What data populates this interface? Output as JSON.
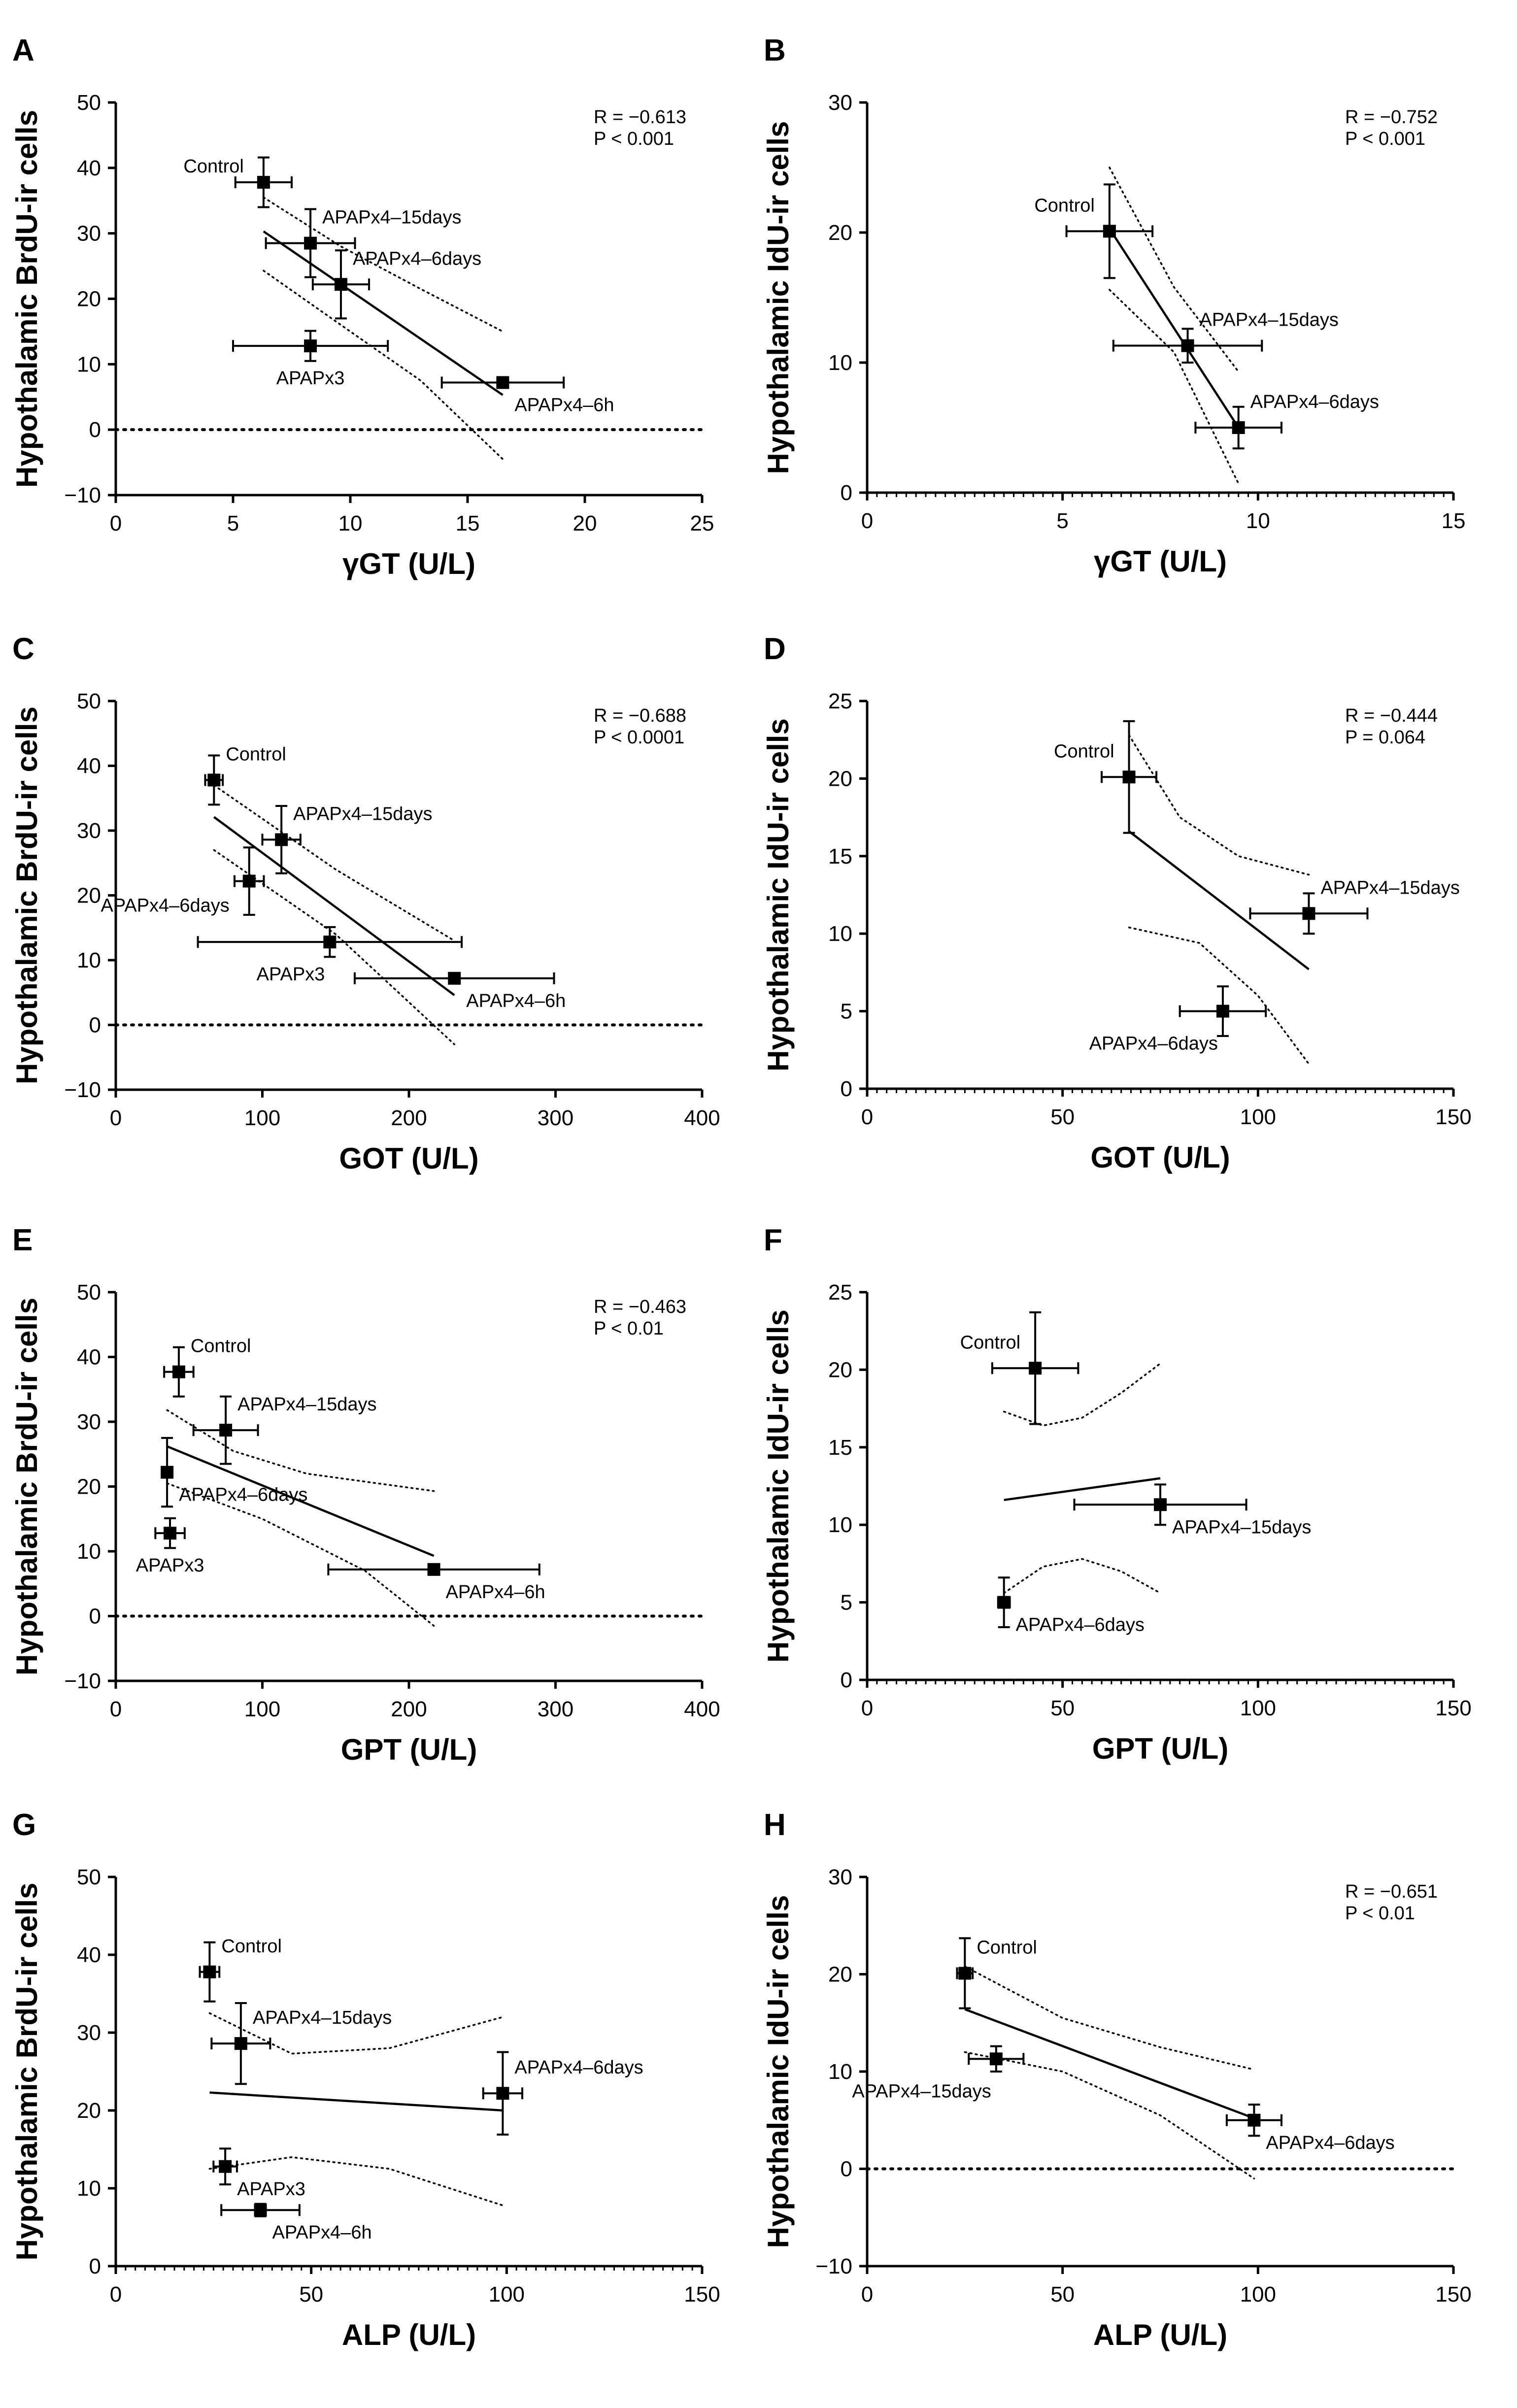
{
  "chart_data": [
    {
      "panel": "A",
      "type": "scatter",
      "xlabel": "γGT (U/L)",
      "ylabel": "Hypothalamic BrdU-ir cells",
      "xlim": [
        0,
        25
      ],
      "ylim": [
        -10,
        50
      ],
      "xticks": [
        "0",
        "5",
        "10",
        "15",
        "20",
        "25"
      ],
      "yticks": [
        "-10",
        "0",
        "10",
        "20",
        "30",
        "40",
        "50"
      ],
      "stats": [
        "R = −0.613",
        "P < 0.001"
      ],
      "stats_position": "top-right",
      "zero_line": true,
      "minor_xticks": false,
      "points": [
        {
          "label": "Control",
          "x": 6.3,
          "y": 37.8,
          "xerr": 1.2,
          "yerr": 3.8,
          "label_side": "left"
        },
        {
          "label": "APAPx4–15days",
          "x": 8.3,
          "y": 28.5,
          "xerr": 1.9,
          "yerr": 5.2,
          "label_side": "right-above"
        },
        {
          "label": "APAPx4–6days",
          "x": 9.6,
          "y": 22.2,
          "xerr": 1.2,
          "yerr": 5.2,
          "label_side": "right-above"
        },
        {
          "label": "APAPx3",
          "x": 8.3,
          "y": 12.8,
          "xerr": 3.3,
          "yerr": 2.3,
          "label_side": "below"
        },
        {
          "label": "APAPx4–6h",
          "x": 16.5,
          "y": 7.2,
          "xerr": 2.6,
          "yerr": 0.8,
          "label_side": "right-below"
        }
      ],
      "fit": {
        "x": [
          6.3,
          16.5
        ],
        "y": [
          30.3,
          5.3
        ]
      },
      "ci_upper": {
        "x": [
          6.3,
          9.6,
          13.0,
          16.5
        ],
        "y": [
          35.5,
          28.0,
          21.5,
          15.0
        ]
      },
      "ci_lower": {
        "x": [
          6.3,
          9.6,
          13.0,
          16.5
        ],
        "y": [
          24.3,
          16.0,
          7.5,
          -4.5
        ]
      }
    },
    {
      "panel": "B",
      "type": "scatter",
      "xlabel": "γGT (U/L)",
      "ylabel": "Hypothalamic IdU-ir cells",
      "xlim": [
        0,
        15
      ],
      "ylim": [
        0,
        30
      ],
      "xticks": [
        "0",
        "5",
        "10",
        "15"
      ],
      "yticks": [
        "0",
        "10",
        "20",
        "30"
      ],
      "stats": [
        "R = −0.752",
        "P < 0.001"
      ],
      "stats_position": "top-right",
      "zero_line": false,
      "minor_xticks": true,
      "points": [
        {
          "label": "Control",
          "x": 6.2,
          "y": 20.1,
          "xerr": 1.1,
          "yerr": 3.6,
          "label_side": "left-above"
        },
        {
          "label": "APAPx4–15days",
          "x": 8.2,
          "y": 11.3,
          "xerr": 1.9,
          "yerr": 1.3,
          "label_side": "right-above"
        },
        {
          "label": "APAPx4–6days",
          "x": 9.5,
          "y": 5.0,
          "xerr": 1.1,
          "yerr": 1.6,
          "label_side": "right-above"
        }
      ],
      "fit": {
        "x": [
          6.2,
          9.5
        ],
        "y": [
          20.3,
          5.0
        ]
      },
      "ci_upper": {
        "x": [
          6.2,
          7.85,
          9.5
        ],
        "y": [
          25.0,
          15.8,
          9.3
        ]
      },
      "ci_lower": {
        "x": [
          6.2,
          7.85,
          9.5
        ],
        "y": [
          15.6,
          10.8,
          0.7
        ]
      }
    },
    {
      "panel": "C",
      "type": "scatter",
      "xlabel": "GOT (U/L)",
      "ylabel": "Hypothalamic BrdU-ir cells",
      "xlim": [
        0,
        400
      ],
      "ylim": [
        -10,
        50
      ],
      "xticks": [
        "0",
        "100",
        "200",
        "300",
        "400"
      ],
      "yticks": [
        "-10",
        "0",
        "10",
        "20",
        "30",
        "40",
        "50"
      ],
      "stats": [
        "R = −0.688",
        "P < 0.0001"
      ],
      "stats_position": "top-right",
      "zero_line": true,
      "minor_xticks": false,
      "points": [
        {
          "label": "Control",
          "x": 67,
          "y": 37.8,
          "xerr": 6,
          "yerr": 3.8,
          "label_side": "right-above"
        },
        {
          "label": "APAPx4–15days",
          "x": 113,
          "y": 28.6,
          "xerr": 13,
          "yerr": 5.2,
          "label_side": "right-above"
        },
        {
          "label": "APAPx4–6days",
          "x": 91,
          "y": 22.2,
          "xerr": 10,
          "yerr": 5.2,
          "label_side": "left-below"
        },
        {
          "label": "APAPx3",
          "x": 146,
          "y": 12.8,
          "xerr": 90,
          "yerr": 2.3,
          "label_side": "below-left"
        },
        {
          "label": "APAPx4–6h",
          "x": 231,
          "y": 7.2,
          "xerr": 68,
          "yerr": 0.8,
          "label_side": "right-below"
        }
      ],
      "fit": {
        "x": [
          67,
          231
        ],
        "y": [
          32.1,
          4.6
        ]
      },
      "ci_upper": {
        "x": [
          67,
          150,
          231
        ],
        "y": [
          37.0,
          24.0,
          13.0
        ]
      },
      "ci_lower": {
        "x": [
          67,
          150,
          231
        ],
        "y": [
          27.0,
          14.0,
          -3.0
        ]
      }
    },
    {
      "panel": "D",
      "type": "scatter",
      "xlabel": "GOT (U/L)",
      "ylabel": "Hypothalamic IdU-ir cells",
      "xlim": [
        0,
        150
      ],
      "ylim": [
        0,
        25
      ],
      "xticks": [
        "0",
        "50",
        "100",
        "150"
      ],
      "yticks": [
        "0",
        "5",
        "10",
        "15",
        "20",
        "25"
      ],
      "stats": [
        "R = −0.444",
        "P = 0.064"
      ],
      "stats_position": "top-right",
      "zero_line": false,
      "minor_xticks": true,
      "points": [
        {
          "label": "Control",
          "x": 67,
          "y": 20.1,
          "xerr": 7,
          "yerr": 3.6,
          "label_side": "left-above"
        },
        {
          "label": "APAPx4–15days",
          "x": 113,
          "y": 11.3,
          "xerr": 15,
          "yerr": 1.3,
          "label_side": "right-above"
        },
        {
          "label": "APAPx4–6days",
          "x": 91,
          "y": 5.0,
          "xerr": 11,
          "yerr": 1.6,
          "label_side": "below-left"
        }
      ],
      "fit": {
        "x": [
          67,
          113
        ],
        "y": [
          16.6,
          7.7
        ]
      },
      "ci_upper": {
        "x": [
          67,
          80,
          95,
          113
        ],
        "y": [
          22.8,
          17.5,
          15.0,
          13.8
        ]
      },
      "ci_lower": {
        "x": [
          67,
          85,
          100,
          113
        ],
        "y": [
          10.4,
          9.4,
          6.0,
          1.6
        ]
      }
    },
    {
      "panel": "E",
      "type": "scatter",
      "xlabel": "GPT (U/L)",
      "ylabel": "Hypothalamic BrdU-ir cells",
      "xlim": [
        0,
        400
      ],
      "ylim": [
        -10,
        50
      ],
      "xticks": [
        "0",
        "100",
        "200",
        "300",
        "400"
      ],
      "yticks": [
        "-10",
        "0",
        "10",
        "20",
        "30",
        "40",
        "50"
      ],
      "stats": [
        "R = −0.463",
        "P < 0.01"
      ],
      "stats_position": "top-right",
      "zero_line": true,
      "minor_xticks": false,
      "points": [
        {
          "label": "Control",
          "x": 43,
          "y": 37.7,
          "xerr": 10,
          "yerr": 3.8,
          "label_side": "right-above"
        },
        {
          "label": "APAPx4–15days",
          "x": 75,
          "y": 28.7,
          "xerr": 22,
          "yerr": 5.2,
          "label_side": "right-above"
        },
        {
          "label": "APAPx4–6days",
          "x": 35,
          "y": 22.2,
          "xerr": 0,
          "yerr": 5.3,
          "label_side": "right-below"
        },
        {
          "label": "APAPx3",
          "x": 37,
          "y": 12.8,
          "xerr": 10,
          "yerr": 2.3,
          "label_side": "below"
        },
        {
          "label": "APAPx4–6h",
          "x": 217,
          "y": 7.2,
          "xerr": 72,
          "yerr": 0.8,
          "label_side": "right-below"
        }
      ],
      "fit": {
        "x": [
          35,
          217
        ],
        "y": [
          26.2,
          9.3
        ]
      },
      "ci_upper": {
        "x": [
          35,
          80,
          130,
          217
        ],
        "y": [
          31.8,
          25.5,
          22.0,
          19.3
        ]
      },
      "ci_lower": {
        "x": [
          35,
          100,
          170,
          217
        ],
        "y": [
          20.5,
          15.0,
          7.0,
          -1.5
        ]
      }
    },
    {
      "panel": "F",
      "type": "scatter",
      "xlabel": "GPT (U/L)",
      "ylabel": "Hypothalamic IdU-ir cells",
      "xlim": [
        0,
        150
      ],
      "ylim": [
        0,
        25
      ],
      "xticks": [
        "0",
        "50",
        "100",
        "150"
      ],
      "yticks": [
        "0",
        "5",
        "10",
        "15",
        "20",
        "25"
      ],
      "stats": [],
      "stats_position": "",
      "zero_line": false,
      "minor_xticks": true,
      "points": [
        {
          "label": "Control",
          "x": 43,
          "y": 20.1,
          "xerr": 11,
          "yerr": 3.6,
          "label_side": "left-above"
        },
        {
          "label": "APAPx4–15days",
          "x": 75,
          "y": 11.3,
          "xerr": 22,
          "yerr": 1.3,
          "label_side": "right-below"
        },
        {
          "label": "APAPx4–6days",
          "x": 35,
          "y": 5.0,
          "xerr": 1.5,
          "yerr": 1.6,
          "label_side": "right-below"
        }
      ],
      "fit": {
        "x": [
          35,
          75
        ],
        "y": [
          11.6,
          13.0
        ]
      },
      "ci_upper": {
        "x": [
          35,
          45,
          55,
          65,
          75
        ],
        "y": [
          17.3,
          16.4,
          16.9,
          18.5,
          20.4
        ]
      },
      "ci_lower": {
        "x": [
          35,
          45,
          55,
          65,
          75
        ],
        "y": [
          5.6,
          7.3,
          7.8,
          7.0,
          5.6
        ]
      }
    },
    {
      "panel": "G",
      "type": "scatter",
      "xlabel": "ALP (U/L)",
      "ylabel": "Hypothalamic BrdU-ir cells",
      "xlim": [
        0,
        150
      ],
      "ylim": [
        0,
        50
      ],
      "xticks": [
        "0",
        "50",
        "100",
        "150"
      ],
      "yticks": [
        "0",
        "10",
        "20",
        "30",
        "40",
        "50"
      ],
      "stats": [],
      "stats_position": "",
      "zero_line": false,
      "minor_xticks": true,
      "points": [
        {
          "label": "Control",
          "x": 24,
          "y": 37.8,
          "xerr": 2.5,
          "yerr": 3.8,
          "label_side": "right-above"
        },
        {
          "label": "APAPx4–15days",
          "x": 32,
          "y": 28.6,
          "xerr": 7.5,
          "yerr": 5.2,
          "label_side": "right-above"
        },
        {
          "label": "APAPx4–6days",
          "x": 99,
          "y": 22.2,
          "xerr": 5,
          "yerr": 5.3,
          "label_side": "right-above"
        },
        {
          "label": "APAPx3",
          "x": 28,
          "y": 12.8,
          "xerr": 3,
          "yerr": 2.3,
          "label_side": "right-below"
        },
        {
          "label": "APAPx4–6h",
          "x": 37,
          "y": 7.2,
          "xerr": 10,
          "yerr": 0.8,
          "label_side": "right-below"
        }
      ],
      "fit": {
        "x": [
          24,
          99
        ],
        "y": [
          22.3,
          20.0
        ]
      },
      "ci_upper": {
        "x": [
          24,
          45,
          70,
          99
        ],
        "y": [
          32.5,
          27.3,
          28.0,
          32.0
        ]
      },
      "ci_lower": {
        "x": [
          24,
          45,
          70,
          99
        ],
        "y": [
          12.5,
          14.0,
          12.5,
          7.8
        ]
      }
    },
    {
      "panel": "H",
      "type": "scatter",
      "xlabel": "ALP (U/L)",
      "ylabel": "Hypothalamic IdU-ir cells",
      "xlim": [
        0,
        150
      ],
      "ylim": [
        -10,
        30
      ],
      "xticks": [
        "0",
        "50",
        "100",
        "150"
      ],
      "yticks": [
        "-10",
        "0",
        "10",
        "20",
        "30"
      ],
      "stats": [
        "R = −0.651",
        "P < 0.01"
      ],
      "stats_position": "top-right",
      "zero_line": true,
      "minor_xticks": false,
      "points": [
        {
          "label": "Control",
          "x": 25,
          "y": 20.1,
          "xerr": 2,
          "yerr": 3.6,
          "label_side": "right-above"
        },
        {
          "label": "APAPx4–15days",
          "x": 33,
          "y": 11.3,
          "xerr": 7,
          "yerr": 1.3,
          "label_side": "below-left"
        },
        {
          "label": "APAPx4–6days",
          "x": 99,
          "y": 5.0,
          "xerr": 7,
          "yerr": 1.6,
          "label_side": "right-below"
        }
      ],
      "fit": {
        "x": [
          25,
          99
        ],
        "y": [
          16.4,
          5.2
        ]
      },
      "ci_upper": {
        "x": [
          25,
          50,
          75,
          99
        ],
        "y": [
          20.8,
          15.5,
          12.5,
          10.2
        ]
      },
      "ci_lower": {
        "x": [
          25,
          50,
          75,
          99
        ],
        "y": [
          12.0,
          10.0,
          5.5,
          -1.0
        ]
      }
    }
  ]
}
